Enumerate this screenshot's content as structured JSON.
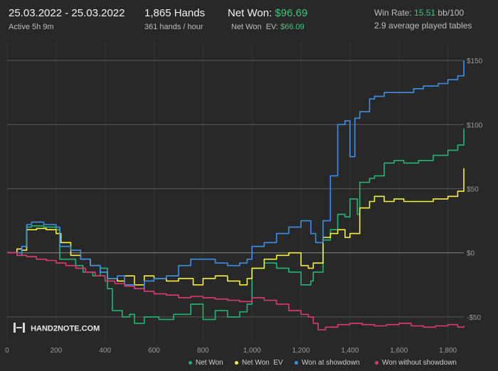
{
  "header": {
    "date_range": "25.03.2022 - 25.03.2022",
    "active": "Active 5h 9m",
    "hands": "1,865 Hands",
    "hands_per_hour": "361 hands / hour",
    "net_won_label": "Net Won:",
    "net_won_value": "$96.69",
    "net_won_ev_label": "Net Won  EV:",
    "net_won_ev_value": "$66.09",
    "win_rate_label": "Win Rate:",
    "win_rate_value": "15.51",
    "win_rate_unit": "bb/100",
    "tables": "2.9 average played tables"
  },
  "brand": {
    "text": "HAND2NOTE.COM"
  },
  "colors": {
    "net_won": "#22b573",
    "net_won_ev": "#f5ef3f",
    "showdown": "#3d8fe6",
    "non_showdown": "#e0386f",
    "accent_green": "#3ec77b"
  },
  "chart_data": {
    "type": "line",
    "xlabel": "",
    "ylabel": "",
    "xlim": [
      0,
      1865
    ],
    "ylim": [
      -70,
      165
    ],
    "x_ticks": [
      0,
      200,
      400,
      600,
      800,
      1000,
      1200,
      1400,
      1600,
      1800
    ],
    "x_tick_labels": [
      "0",
      "200",
      "400",
      "600",
      "800",
      "1,000",
      "1,200",
      "1,400",
      "1,600",
      "1,800"
    ],
    "y_ticks": [
      -50,
      0,
      50,
      100,
      150
    ],
    "y_tick_labels": [
      "-$50",
      "$0",
      "$50",
      "$100",
      "$150"
    ],
    "grid": true,
    "legend_position": "bottom-right",
    "series": [
      {
        "name": "Net Won",
        "color": "#22b573",
        "points": [
          [
            0,
            0
          ],
          [
            40,
            -2
          ],
          [
            60,
            5
          ],
          [
            80,
            20
          ],
          [
            100,
            21
          ],
          [
            150,
            20
          ],
          [
            200,
            18
          ],
          [
            215,
            -5
          ],
          [
            280,
            -10
          ],
          [
            310,
            -15
          ],
          [
            350,
            -18
          ],
          [
            380,
            -12
          ],
          [
            410,
            -28
          ],
          [
            430,
            -45
          ],
          [
            470,
            -50
          ],
          [
            500,
            -48
          ],
          [
            520,
            -55
          ],
          [
            560,
            -50
          ],
          [
            620,
            -52
          ],
          [
            680,
            -48
          ],
          [
            750,
            -40
          ],
          [
            800,
            -52
          ],
          [
            850,
            -45
          ],
          [
            900,
            -50
          ],
          [
            950,
            -46
          ],
          [
            980,
            -40
          ],
          [
            1000,
            -12
          ],
          [
            1050,
            -8
          ],
          [
            1100,
            -12
          ],
          [
            1150,
            -15
          ],
          [
            1200,
            -25
          ],
          [
            1240,
            -22
          ],
          [
            1250,
            -15
          ],
          [
            1290,
            10
          ],
          [
            1320,
            18
          ],
          [
            1350,
            30
          ],
          [
            1380,
            28
          ],
          [
            1400,
            42
          ],
          [
            1430,
            30
          ],
          [
            1440,
            55
          ],
          [
            1480,
            58
          ],
          [
            1500,
            60
          ],
          [
            1540,
            70
          ],
          [
            1580,
            72
          ],
          [
            1620,
            70
          ],
          [
            1680,
            72
          ],
          [
            1740,
            76
          ],
          [
            1800,
            80
          ],
          [
            1840,
            84
          ],
          [
            1865,
            97
          ]
        ]
      },
      {
        "name": "Net Won  EV",
        "color": "#f5ef3f",
        "points": [
          [
            0,
            0
          ],
          [
            40,
            3
          ],
          [
            60,
            2
          ],
          [
            80,
            18
          ],
          [
            120,
            19
          ],
          [
            160,
            18
          ],
          [
            200,
            15
          ],
          [
            220,
            8
          ],
          [
            260,
            -2
          ],
          [
            300,
            -5
          ],
          [
            340,
            -10
          ],
          [
            380,
            -15
          ],
          [
            410,
            -20
          ],
          [
            450,
            -22
          ],
          [
            480,
            -18
          ],
          [
            520,
            -25
          ],
          [
            560,
            -18
          ],
          [
            600,
            -20
          ],
          [
            650,
            -22
          ],
          [
            700,
            -20
          ],
          [
            760,
            -25
          ],
          [
            800,
            -20
          ],
          [
            850,
            -18
          ],
          [
            900,
            -22
          ],
          [
            950,
            -25
          ],
          [
            980,
            -20
          ],
          [
            1000,
            -12
          ],
          [
            1050,
            -5
          ],
          [
            1100,
            -2
          ],
          [
            1150,
            0
          ],
          [
            1200,
            -10
          ],
          [
            1230,
            -12
          ],
          [
            1250,
            -8
          ],
          [
            1290,
            12
          ],
          [
            1320,
            15
          ],
          [
            1350,
            18
          ],
          [
            1380,
            12
          ],
          [
            1400,
            15
          ],
          [
            1430,
            15
          ],
          [
            1440,
            35
          ],
          [
            1480,
            40
          ],
          [
            1500,
            44
          ],
          [
            1540,
            40
          ],
          [
            1580,
            42
          ],
          [
            1620,
            40
          ],
          [
            1680,
            40
          ],
          [
            1740,
            42
          ],
          [
            1800,
            44
          ],
          [
            1840,
            48
          ],
          [
            1865,
            66
          ]
        ]
      },
      {
        "name": "Won at showdown",
        "color": "#3d8fe6",
        "points": [
          [
            0,
            0
          ],
          [
            40,
            0
          ],
          [
            60,
            5
          ],
          [
            80,
            22
          ],
          [
            100,
            24
          ],
          [
            150,
            22
          ],
          [
            200,
            20
          ],
          [
            215,
            5
          ],
          [
            260,
            2
          ],
          [
            300,
            -5
          ],
          [
            340,
            -10
          ],
          [
            380,
            -15
          ],
          [
            410,
            -20
          ],
          [
            450,
            -18
          ],
          [
            480,
            -25
          ],
          [
            520,
            -28
          ],
          [
            560,
            -22
          ],
          [
            600,
            -20
          ],
          [
            650,
            -18
          ],
          [
            700,
            -10
          ],
          [
            750,
            -5
          ],
          [
            800,
            -5
          ],
          [
            850,
            -8
          ],
          [
            900,
            -10
          ],
          [
            950,
            -8
          ],
          [
            980,
            -5
          ],
          [
            1000,
            5
          ],
          [
            1050,
            8
          ],
          [
            1100,
            15
          ],
          [
            1150,
            20
          ],
          [
            1200,
            25
          ],
          [
            1240,
            15
          ],
          [
            1260,
            8
          ],
          [
            1290,
            25
          ],
          [
            1320,
            60
          ],
          [
            1350,
            100
          ],
          [
            1380,
            103
          ],
          [
            1400,
            75
          ],
          [
            1420,
            105
          ],
          [
            1440,
            110
          ],
          [
            1480,
            120
          ],
          [
            1500,
            122
          ],
          [
            1540,
            125
          ],
          [
            1600,
            125
          ],
          [
            1660,
            128
          ],
          [
            1700,
            130
          ],
          [
            1760,
            132
          ],
          [
            1800,
            135
          ],
          [
            1840,
            138
          ],
          [
            1865,
            150
          ]
        ]
      },
      {
        "name": "Won without showdown",
        "color": "#e0386f",
        "points": [
          [
            0,
            0
          ],
          [
            40,
            -2
          ],
          [
            80,
            -3
          ],
          [
            120,
            -5
          ],
          [
            160,
            -6
          ],
          [
            200,
            -8
          ],
          [
            240,
            -10
          ],
          [
            280,
            -12
          ],
          [
            320,
            -15
          ],
          [
            360,
            -18
          ],
          [
            400,
            -22
          ],
          [
            440,
            -24
          ],
          [
            480,
            -26
          ],
          [
            520,
            -28
          ],
          [
            560,
            -30
          ],
          [
            600,
            -32
          ],
          [
            650,
            -33
          ],
          [
            700,
            -35
          ],
          [
            750,
            -34
          ],
          [
            800,
            -35
          ],
          [
            850,
            -36
          ],
          [
            900,
            -37
          ],
          [
            950,
            -38
          ],
          [
            1000,
            -35
          ],
          [
            1050,
            -37
          ],
          [
            1100,
            -40
          ],
          [
            1150,
            -45
          ],
          [
            1200,
            -48
          ],
          [
            1230,
            -50
          ],
          [
            1250,
            -55
          ],
          [
            1270,
            -60
          ],
          [
            1300,
            -58
          ],
          [
            1350,
            -56
          ],
          [
            1400,
            -55
          ],
          [
            1450,
            -56
          ],
          [
            1500,
            -57
          ],
          [
            1550,
            -56
          ],
          [
            1600,
            -55
          ],
          [
            1650,
            -57
          ],
          [
            1700,
            -58
          ],
          [
            1750,
            -57
          ],
          [
            1800,
            -56
          ],
          [
            1840,
            -58
          ],
          [
            1865,
            -57
          ]
        ]
      }
    ]
  },
  "legend": {
    "net_won": "Net Won",
    "net_won_ev": "Net Won  EV",
    "showdown": "Won at showdown",
    "non_showdown": "Won without showdown"
  }
}
